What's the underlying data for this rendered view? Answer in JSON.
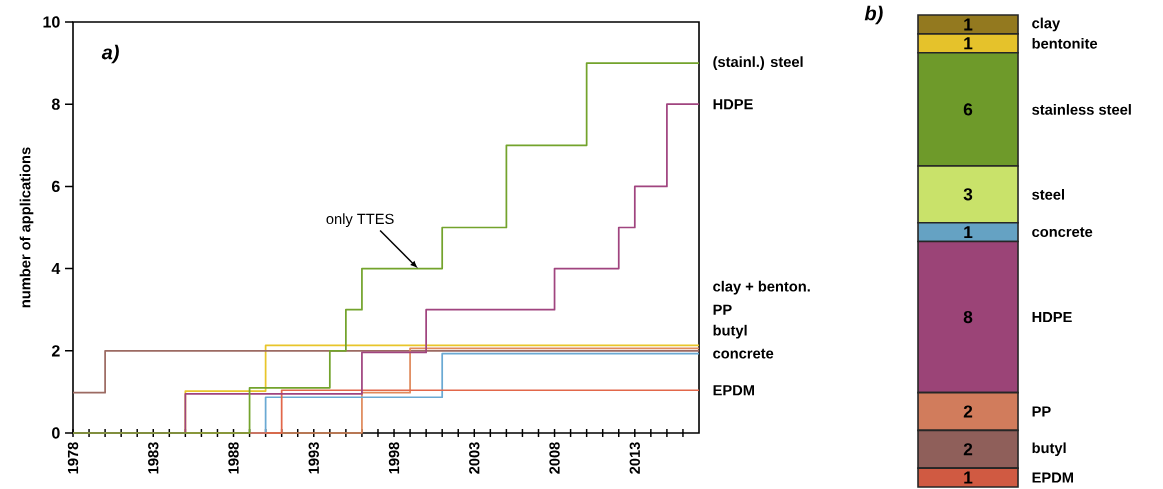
{
  "chart_data": [
    {
      "type": "step",
      "title": "a)",
      "ylabel": "number of applications",
      "xlim": [
        1978,
        2017
      ],
      "ylim": [
        0,
        10
      ],
      "xticks": [
        1978,
        {
          "value": 1979,
          "label": null
        },
        {
          "value": 1980,
          "label": null
        },
        {
          "value": 1981,
          "label": null
        },
        {
          "value": 1982,
          "label": null
        },
        1983,
        {
          "value": 1984,
          "label": null
        },
        {
          "value": 1985,
          "label": null
        },
        {
          "value": 1986,
          "label": null
        },
        {
          "value": 1987,
          "label": null
        },
        1988,
        {
          "value": 1989,
          "label": null
        },
        {
          "value": 1990,
          "label": null
        },
        {
          "value": 1991,
          "label": null
        },
        {
          "value": 1992,
          "label": null
        },
        1993,
        {
          "value": 1994,
          "label": null
        },
        {
          "value": 1995,
          "label": null
        },
        {
          "value": 1996,
          "label": null
        },
        {
          "value": 1997,
          "label": null
        },
        1998,
        {
          "value": 1999,
          "label": null
        },
        {
          "value": 2000,
          "label": null
        },
        {
          "value": 2001,
          "label": null
        },
        {
          "value": 2002,
          "label": null
        },
        2003,
        {
          "value": 2004,
          "label": null
        },
        {
          "value": 2005,
          "label": null
        },
        {
          "value": 2006,
          "label": null
        },
        {
          "value": 2007,
          "label": null
        },
        2008,
        {
          "value": 2009,
          "label": null
        },
        {
          "value": 2010,
          "label": null
        },
        {
          "value": 2011,
          "label": null
        },
        {
          "value": 2012,
          "label": null
        },
        2013,
        {
          "value": 2014,
          "label": null
        },
        {
          "value": 2015,
          "label": null
        },
        {
          "value": 2016,
          "label": null
        }
      ],
      "yticks": [
        0,
        2,
        4,
        6,
        8,
        10
      ],
      "annotations": [
        {
          "text": "only TTES",
          "x": 1999.5,
          "y": 4
        }
      ],
      "series": [
        {
          "name": "clay + benton.",
          "color": "#e8c52a",
          "x": [
            1978,
            1985,
            1990,
            2017
          ],
          "values": [
            0,
            1.02,
            2.13,
            2.13
          ]
        },
        {
          "name": "butyl",
          "color": "#9c6a62",
          "x": [
            1978,
            1980,
            2017
          ],
          "values": [
            0.98,
            2,
            2
          ]
        },
        {
          "name": "PP",
          "color": "#e08a5c",
          "x": [
            1978,
            1996,
            1999,
            2017
          ],
          "values": [
            0,
            0.98,
            2.06,
            2.06
          ]
        },
        {
          "name": "concrete",
          "color": "#6aa9d3",
          "x": [
            1978,
            1990,
            2001,
            2017
          ],
          "values": [
            0,
            0.87,
            1.93,
            1.93
          ]
        },
        {
          "name": "EPDM",
          "color": "#e2674a",
          "x": [
            1978,
            1991,
            2017
          ],
          "values": [
            0,
            1.04,
            1.04
          ]
        },
        {
          "name": "HDPE",
          "color": "#a0447f",
          "x": [
            1978,
            1985,
            1996,
            2000,
            2008,
            2012,
            2013,
            2015,
            2017
          ],
          "values": [
            0,
            0.95,
            1.96,
            3,
            4,
            5,
            6,
            8,
            8
          ]
        },
        {
          "name": "(stainl.) steel",
          "color": "#73a32c",
          "x": [
            1978,
            1989,
            1994,
            1995,
            1996,
            2001,
            2005,
            2010,
            2017
          ],
          "values": [
            0,
            1.1,
            2,
            3,
            4,
            5,
            7,
            9,
            9
          ]
        }
      ]
    },
    {
      "type": "bar",
      "title": "b)",
      "stacked": true,
      "data_labels": true,
      "categories": [
        null
      ],
      "series": [
        {
          "name": "EPDM",
          "color": "#d05a42",
          "values": [
            1
          ]
        },
        {
          "name": "butyl",
          "color": "#8f5f5a",
          "values": [
            2
          ]
        },
        {
          "name": "PP",
          "color": "#d17c5c",
          "values": [
            2
          ]
        },
        {
          "name": "HDPE",
          "color": "#9b4477",
          "values": [
            8
          ]
        },
        {
          "name": "concrete",
          "color": "#65a2c3",
          "values": [
            1
          ]
        },
        {
          "name": "steel",
          "color": "#c9e26a",
          "values": [
            3
          ]
        },
        {
          "name": "stainless steel",
          "color": "#6e9a2a",
          "values": [
            6
          ]
        },
        {
          "name": "bentonite",
          "color": "#e5c22b",
          "values": [
            1
          ]
        },
        {
          "name": "clay",
          "color": "#93791f",
          "values": [
            1
          ]
        }
      ]
    }
  ]
}
